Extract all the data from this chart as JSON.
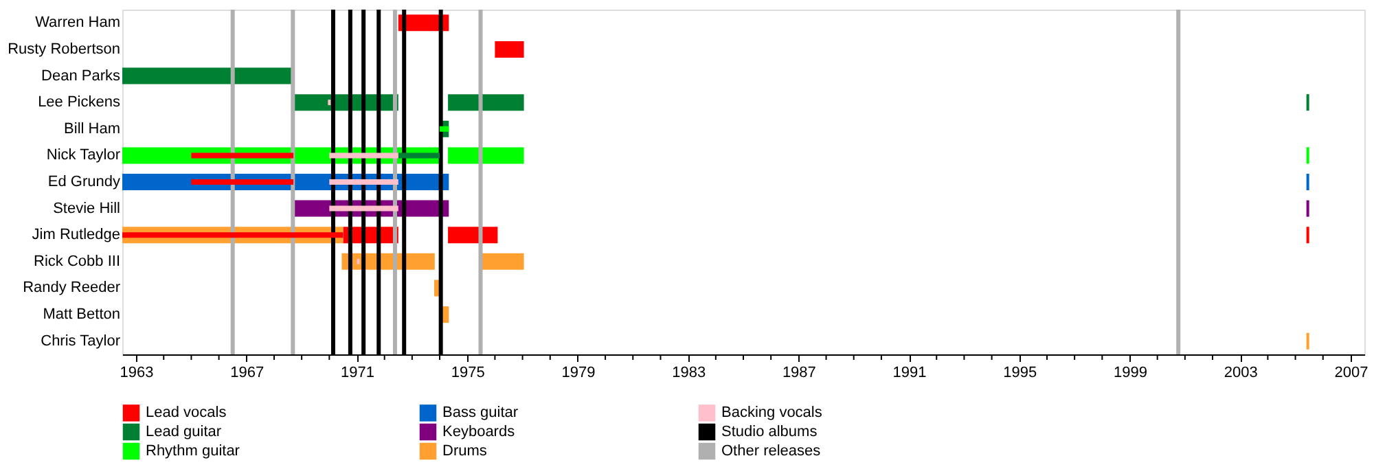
{
  "chart_data": {
    "type": "bar",
    "orientation": "horizontal",
    "legend": "bottom",
    "grid": false,
    "categories": [
      "Warren Ham",
      "Rusty Robertson",
      "Dean Parks",
      "Lee Pickens",
      "Bill Ham",
      "Nick Taylor",
      "Ed Grundy",
      "Stevie Hill",
      "Jim Rutledge",
      "Rick Cobb III",
      "Randy Reeder",
      "Matt Betton",
      "Chris Taylor"
    ],
    "xlim": [
      1962.5,
      2007.5
    ],
    "xticks": [
      1963,
      {
        "value": 1964,
        "label": null
      },
      {
        "value": 1965,
        "label": null
      },
      {
        "value": 1966,
        "label": null
      },
      1967,
      {
        "value": 1968,
        "label": null
      },
      {
        "value": 1969,
        "label": null
      },
      {
        "value": 1970,
        "label": null
      },
      1971,
      {
        "value": 1972,
        "label": null
      },
      {
        "value": 1973,
        "label": null
      },
      {
        "value": 1974,
        "label": null
      },
      1975,
      {
        "value": 1976,
        "label": null
      },
      {
        "value": 1977,
        "label": null
      },
      {
        "value": 1978,
        "label": null
      },
      1979,
      {
        "value": 1980,
        "label": null
      },
      {
        "value": 1981,
        "label": null
      },
      {
        "value": 1982,
        "label": null
      },
      1983,
      {
        "value": 1984,
        "label": null
      },
      {
        "value": 1985,
        "label": null
      },
      {
        "value": 1986,
        "label": null
      },
      1987,
      {
        "value": 1988,
        "label": null
      },
      {
        "value": 1989,
        "label": null
      },
      {
        "value": 1990,
        "label": null
      },
      1991,
      {
        "value": 1992,
        "label": null
      },
      {
        "value": 1993,
        "label": null
      },
      {
        "value": 1994,
        "label": null
      },
      1995,
      {
        "value": 1996,
        "label": null
      },
      {
        "value": 1997,
        "label": null
      },
      {
        "value": 1998,
        "label": null
      },
      1999,
      {
        "value": 2000,
        "label": null
      },
      {
        "value": 2001,
        "label": null
      },
      {
        "value": 2002,
        "label": null
      },
      2003,
      {
        "value": 2004,
        "label": null
      },
      {
        "value": 2005,
        "label": null
      },
      {
        "value": 2006,
        "label": null
      },
      2007
    ],
    "series": [
      {
        "name": "Lead vocals",
        "color": "#ff0000",
        "base": [
          1972.5,
          1976.0,
          null,
          null,
          null,
          null,
          null,
          null,
          1970.5,
          null,
          null,
          null,
          null
        ],
        "values": [
          1.83,
          1.05,
          null,
          null,
          null,
          null,
          null,
          null,
          2.0,
          null,
          null,
          null,
          null
        ]
      },
      {
        "color": "#ff0000",
        "base": [
          null,
          null,
          null,
          null,
          null,
          null,
          null,
          null,
          1974.3,
          null,
          null,
          null,
          null
        ],
        "values": [
          null,
          null,
          null,
          null,
          null,
          null,
          null,
          null,
          1.8,
          null,
          null,
          null,
          null
        ]
      },
      {
        "name": "Lead guitar",
        "color": "#008033",
        "base": [
          null,
          null,
          1962.5,
          1968.7,
          1974.0,
          null,
          null,
          null,
          null,
          null,
          null,
          null,
          null
        ],
        "values": [
          null,
          null,
          6.2,
          3.8,
          0.33,
          null,
          null,
          null,
          null,
          null,
          null,
          null,
          null
        ]
      },
      {
        "color": "#008033",
        "base": [
          null,
          null,
          null,
          1974.3,
          null,
          null,
          null,
          null,
          null,
          null,
          null,
          null,
          null
        ],
        "values": [
          null,
          null,
          null,
          2.75,
          null,
          null,
          null,
          null,
          null,
          null,
          null,
          null,
          null
        ]
      },
      {
        "color": "#008033",
        "base": [
          null,
          null,
          null,
          2005.4,
          null,
          null,
          null,
          null,
          null,
          null,
          null,
          null,
          null
        ],
        "values": [
          null,
          null,
          null,
          0.1,
          null,
          null,
          null,
          null,
          null,
          null,
          null,
          null,
          null
        ]
      },
      {
        "name": "Rhythm guitar",
        "color": "#00ff00",
        "base": [
          null,
          null,
          null,
          null,
          null,
          1962.5,
          null,
          null,
          null,
          null,
          null,
          null,
          null
        ],
        "values": [
          null,
          null,
          null,
          null,
          null,
          11.5,
          null,
          null,
          null,
          null,
          null,
          null,
          null
        ]
      },
      {
        "color": "#00ff00",
        "base": [
          null,
          null,
          null,
          null,
          null,
          1974.3,
          null,
          null,
          null,
          null,
          null,
          null,
          null
        ],
        "values": [
          null,
          null,
          null,
          null,
          null,
          2.75,
          null,
          null,
          null,
          null,
          null,
          null,
          null
        ]
      },
      {
        "color": "#00ff00",
        "base": [
          null,
          null,
          null,
          null,
          null,
          2005.4,
          null,
          null,
          null,
          null,
          null,
          null,
          null
        ],
        "values": [
          null,
          null,
          null,
          null,
          null,
          0.1,
          null,
          null,
          null,
          null,
          null,
          null,
          null
        ]
      },
      {
        "name": "Bass guitar",
        "color": "#0066cc",
        "base": [
          null,
          null,
          null,
          null,
          null,
          null,
          1962.5,
          null,
          null,
          null,
          null,
          null,
          null
        ],
        "values": [
          null,
          null,
          null,
          null,
          null,
          null,
          11.83,
          null,
          null,
          null,
          null,
          null,
          null
        ]
      },
      {
        "color": "#0066cc",
        "base": [
          null,
          null,
          null,
          null,
          null,
          null,
          2005.4,
          null,
          null,
          null,
          null,
          null,
          null
        ],
        "values": [
          null,
          null,
          null,
          null,
          null,
          null,
          0.1,
          null,
          null,
          null,
          null,
          null,
          null
        ]
      },
      {
        "name": "Keyboards",
        "color": "#800080",
        "base": [
          null,
          null,
          null,
          null,
          null,
          null,
          null,
          1968.7,
          null,
          null,
          null,
          null,
          null
        ],
        "values": [
          null,
          null,
          null,
          null,
          null,
          null,
          null,
          5.63,
          null,
          null,
          null,
          null,
          null
        ]
      },
      {
        "color": "#800080",
        "base": [
          null,
          null,
          null,
          null,
          null,
          null,
          null,
          2005.4,
          null,
          null,
          null,
          null,
          null
        ],
        "values": [
          null,
          null,
          null,
          null,
          null,
          null,
          null,
          0.1,
          null,
          null,
          null,
          null,
          null
        ]
      },
      {
        "name": "Drums",
        "color": "#ffa030",
        "base": [
          null,
          null,
          null,
          null,
          null,
          null,
          null,
          null,
          1962.5,
          1970.45,
          1973.8,
          1974.0,
          2005.4
        ],
        "values": [
          null,
          null,
          null,
          null,
          null,
          null,
          null,
          null,
          8.0,
          3.37,
          0.2,
          0.33,
          0.1
        ]
      },
      {
        "color": "#ffa030",
        "base": [
          null,
          null,
          null,
          null,
          null,
          null,
          null,
          null,
          null,
          1975.5,
          null,
          null,
          null
        ],
        "values": [
          null,
          null,
          null,
          null,
          null,
          null,
          null,
          null,
          null,
          1.55,
          null,
          null,
          null
        ]
      },
      {
        "color": "#ff0000",
        "base": [
          null,
          null,
          null,
          null,
          null,
          1965.0,
          1965.0,
          null,
          1962.5,
          null,
          null,
          null,
          null
        ],
        "values": [
          null,
          null,
          null,
          null,
          null,
          3.7,
          3.7,
          null,
          8.0,
          null,
          null,
          null,
          null
        ]
      },
      {
        "color": "#ff0000",
        "base": [
          null,
          null,
          null,
          null,
          null,
          null,
          null,
          null,
          2005.4,
          null,
          null,
          null,
          null
        ],
        "values": [
          null,
          null,
          null,
          null,
          null,
          null,
          null,
          null,
          0.1,
          null,
          null,
          null,
          null
        ]
      },
      {
        "color": "#008033",
        "base": [
          null,
          null,
          null,
          null,
          null,
          1972.5,
          null,
          null,
          null,
          null,
          null,
          null,
          null
        ],
        "values": [
          null,
          null,
          null,
          null,
          null,
          1.5,
          null,
          null,
          null,
          null,
          null,
          null,
          null
        ]
      },
      {
        "color": "#00ff00",
        "base": [
          null,
          null,
          null,
          null,
          1974.0,
          null,
          null,
          null,
          null,
          null,
          null,
          null,
          null
        ],
        "values": [
          null,
          null,
          null,
          null,
          0.33,
          null,
          null,
          null,
          null,
          null,
          null,
          null,
          null
        ]
      },
      {
        "name": "Backing vocals",
        "color": "#ffc0cb",
        "base": [
          null,
          null,
          null,
          1969.95,
          null,
          1970.0,
          1970.0,
          1970.0,
          null,
          1971.0,
          null,
          null,
          null
        ],
        "values": [
          null,
          null,
          null,
          0.1,
          null,
          2.5,
          2.5,
          2.5,
          null,
          0.1,
          null,
          null,
          null
        ]
      }
    ],
    "ref_lines": [
      {
        "axis": "x",
        "value": 1970.14,
        "label": "Studio albums",
        "color": "#000000"
      },
      {
        "axis": "x",
        "value": 1970.76,
        "color": "#000000"
      },
      {
        "axis": "x",
        "value": 1971.24,
        "color": "#000000"
      },
      {
        "axis": "x",
        "value": 1971.79,
        "color": "#000000"
      },
      {
        "axis": "x",
        "value": 1972.71,
        "color": "#000000"
      },
      {
        "axis": "x",
        "value": 1974.04,
        "color": "#000000"
      },
      {
        "axis": "x",
        "value": 1966.5,
        "label": "Other releases",
        "color": "#b0b0b0"
      },
      {
        "axis": "x",
        "value": 1968.68,
        "color": "#b0b0b0"
      },
      {
        "axis": "x",
        "value": 1972.38,
        "color": "#b0b0b0"
      },
      {
        "axis": "x",
        "value": 1975.48,
        "color": "#b0b0b0"
      },
      {
        "axis": "x",
        "value": 2000.76,
        "color": "#b0b0b0"
      }
    ]
  }
}
